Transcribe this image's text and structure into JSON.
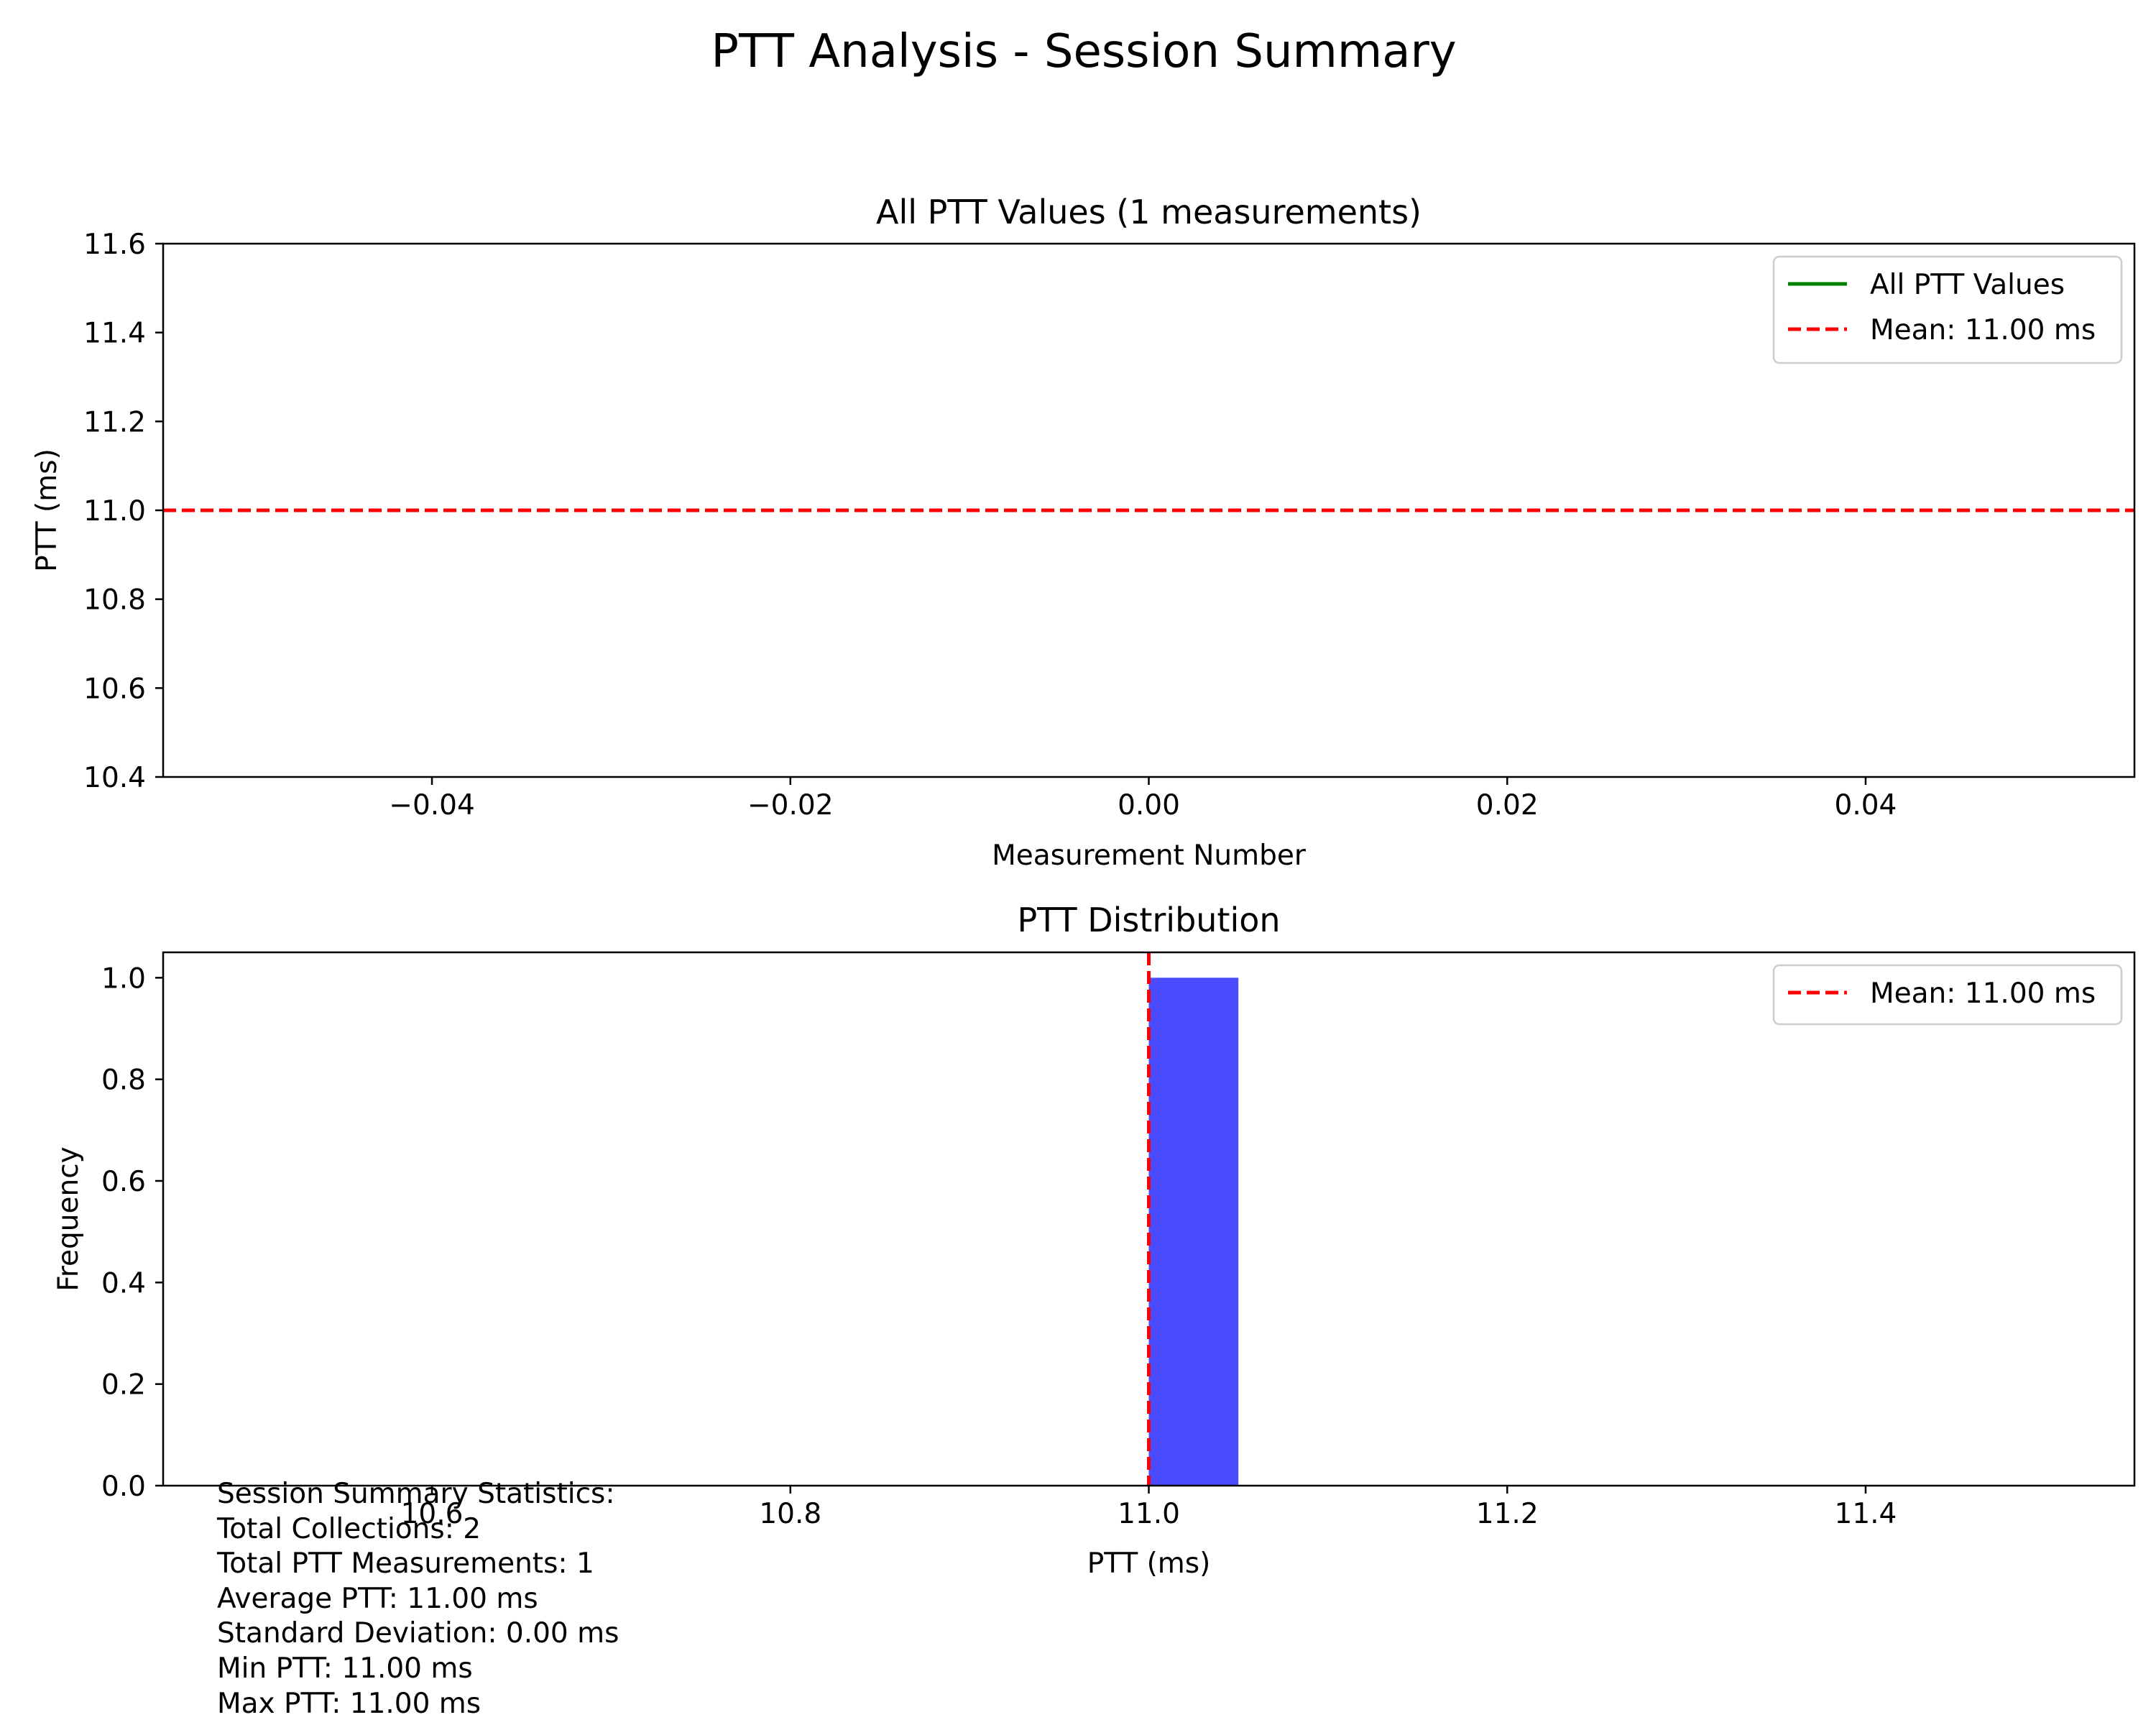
{
  "figure_title": "PTT Analysis - Session Summary",
  "chart_data": [
    {
      "type": "line",
      "title": "All PTT Values (1 measurements)",
      "xlabel": "Measurement Number",
      "ylabel": "PTT (ms)",
      "xlim": [
        -0.055,
        0.055
      ],
      "ylim": [
        10.4,
        11.6
      ],
      "xticks": [
        -0.04,
        -0.02,
        0.0,
        0.02,
        0.04
      ],
      "xtick_labels": [
        "−0.04",
        "−0.02",
        "0.00",
        "0.02",
        "0.04"
      ],
      "yticks": [
        10.4,
        10.6,
        10.8,
        11.0,
        11.2,
        11.4,
        11.6
      ],
      "ytick_labels": [
        "10.4",
        "10.6",
        "10.8",
        "11.0",
        "11.2",
        "11.4",
        "11.6"
      ],
      "series": [
        {
          "name": "All PTT Values",
          "x": [
            0
          ],
          "y": [
            11.0
          ],
          "color": "#008000",
          "style": "solid"
        }
      ],
      "hlines": [
        {
          "name": "Mean: 11.00 ms",
          "y": 11.0,
          "color": "#ff0000",
          "style": "dashed"
        }
      ],
      "legend": "top-right",
      "grid": false
    },
    {
      "type": "bar",
      "title": "PTT Distribution",
      "xlabel": "PTT (ms)",
      "ylabel": "Frequency",
      "xlim": [
        10.45,
        11.55
      ],
      "ylim": [
        0.0,
        1.05
      ],
      "xticks": [
        10.6,
        10.8,
        11.0,
        11.2,
        11.4
      ],
      "xtick_labels": [
        "10.6",
        "10.8",
        "11.0",
        "11.2",
        "11.4"
      ],
      "yticks": [
        0.0,
        0.2,
        0.4,
        0.6,
        0.8,
        1.0
      ],
      "ytick_labels": [
        "0.0",
        "0.2",
        "0.4",
        "0.6",
        "0.8",
        "1.0"
      ],
      "bins": [
        {
          "x0": 11.0,
          "x1": 11.05,
          "count": 1
        }
      ],
      "bar_color": "#4a4aff",
      "vlines": [
        {
          "name": "Mean: 11.00 ms",
          "x": 11.0,
          "color": "#ff0000",
          "style": "dashed"
        }
      ],
      "legend": "top-right",
      "grid": false
    }
  ],
  "stats_lines": [
    "Session Summary Statistics:",
    "Total Collections: 2",
    "Total PTT Measurements: 1",
    "Average PTT: 11.00 ms",
    "Standard Deviation: 0.00 ms",
    "Min PTT: 11.00 ms",
    "Max PTT: 11.00 ms"
  ]
}
